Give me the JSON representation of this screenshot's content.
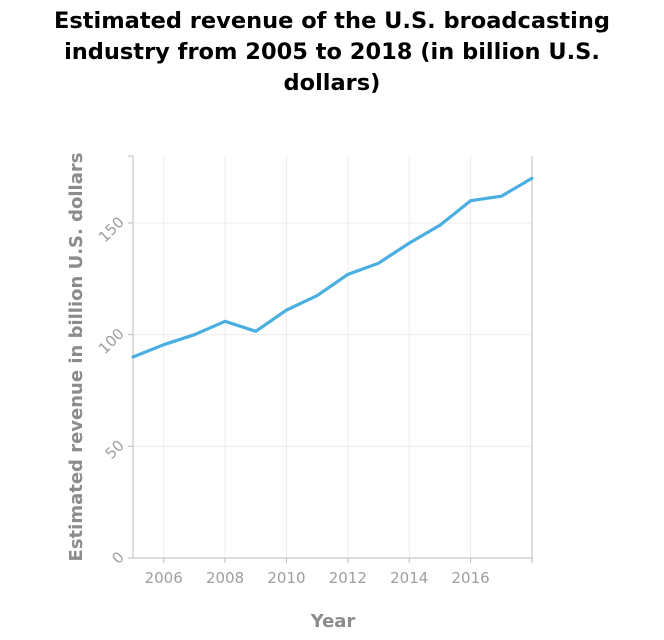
{
  "chart_data": {
    "type": "line",
    "title_lines": [
      "Estimated revenue of the U.S. broadcasting",
      "industry from 2005 to 2018 (in billion U.S.",
      "dollars)"
    ],
    "title": "Estimated revenue of the U.S. broadcasting industry from 2005 to 2018 (in billion U.S. dollars)",
    "xlabel": "Year",
    "ylabel": "Estimated revenue in billion U.S. dollars",
    "x": [
      2005,
      2006,
      2007,
      2008,
      2009,
      2010,
      2011,
      2012,
      2013,
      2014,
      2015,
      2016,
      2017,
      2018
    ],
    "series": [
      {
        "values": [
          90,
          95.5,
          100,
          106,
          101.5,
          111,
          117.5,
          127,
          132,
          141,
          149,
          160,
          162,
          170
        ]
      }
    ],
    "xlim": [
      2005,
      2018
    ],
    "ylim": [
      0,
      180
    ],
    "x_ticks": [
      2006,
      2008,
      2010,
      2012,
      2014,
      2016
    ],
    "y_ticks": [
      0,
      50,
      100,
      150
    ],
    "grid": true,
    "colors": {
      "line": "#4aaee0",
      "grid": "#ececec",
      "axis": "#bdbdbd"
    }
  }
}
